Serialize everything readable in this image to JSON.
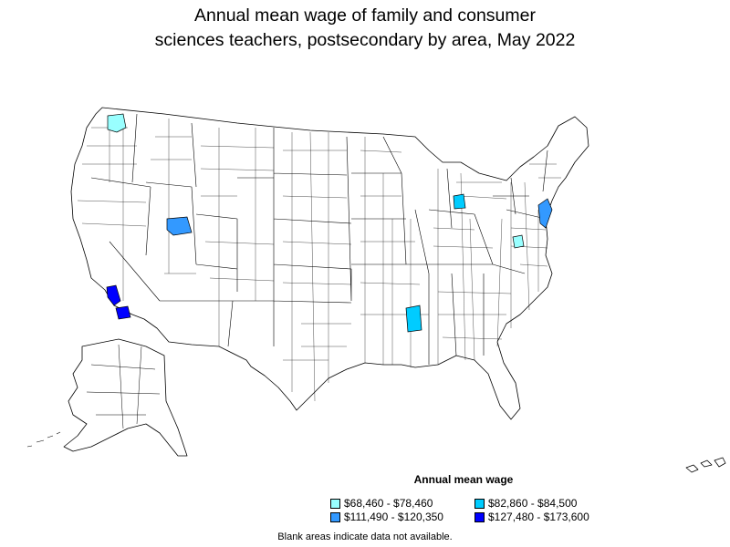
{
  "title": {
    "line1": "Annual mean wage of family and consumer",
    "line2": "sciences teachers, postsecondary by area, May 2022"
  },
  "legend": {
    "title": "Annual mean wage",
    "items": [
      {
        "label": "$68,460 - $78,460",
        "color": "#99ffff"
      },
      {
        "label": "$82,860 - $84,500",
        "color": "#00ccff"
      },
      {
        "label": "$111,490 - $120,350",
        "color": "#3399ff"
      },
      {
        "label": "$127,480 - $173,600",
        "color": "#0000ff"
      }
    ]
  },
  "footnote": "Blank areas indicate data not available.",
  "colors": {
    "border": "#000000",
    "no_data": "#ffffff"
  },
  "highlighted_areas": [
    {
      "region": "Washington (west)",
      "bin": "$68,460 - $78,460"
    },
    {
      "region": "Utah (north)",
      "bin": "$111,490 - $120,350"
    },
    {
      "region": "Southern California (Los Angeles)",
      "bin": "$127,480 - $173,600"
    },
    {
      "region": "Southern California (San Diego)",
      "bin": "$127,480 - $173,600"
    },
    {
      "region": "Michigan (central)",
      "bin": "$82,860 - $84,500"
    },
    {
      "region": "New York / New Jersey",
      "bin": "$111,490 - $120,350"
    },
    {
      "region": "Virginia (central)",
      "bin": "$68,460 - $78,460"
    },
    {
      "region": "Mississippi (central)",
      "bin": "$82,860 - $84,500"
    }
  ]
}
